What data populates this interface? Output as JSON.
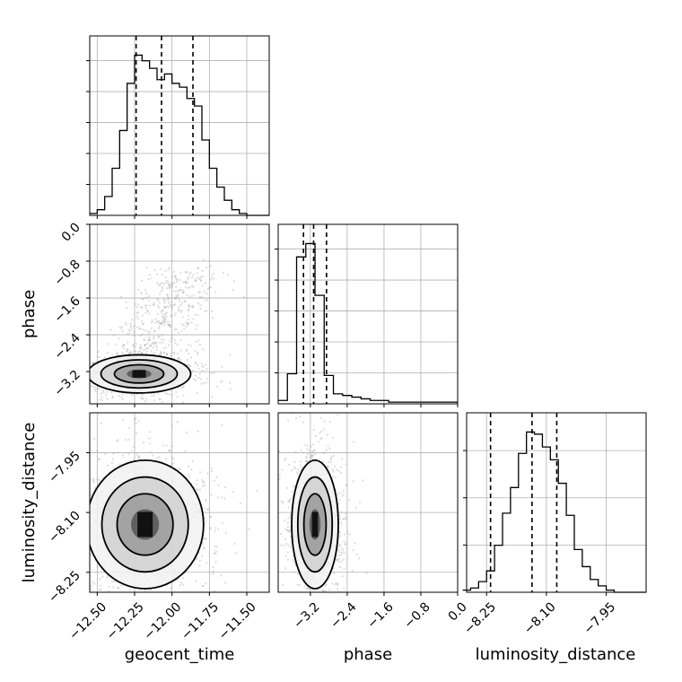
{
  "chart_data": {
    "type": "corner",
    "parameters": [
      {
        "name": "geocent_time",
        "range": [
          -12.55,
          -11.35
        ],
        "ticks": [
          "-12.50",
          "-12.25",
          "-12.00",
          "-11.75",
          "-11.50"
        ],
        "quantiles": [
          -12.24,
          -12.07,
          -11.86
        ]
      },
      {
        "name": "phase",
        "range": [
          -3.9,
          0.0
        ],
        "ticks": [
          "-3.2",
          "-2.4",
          "-1.6",
          "-0.8",
          "0.0"
        ],
        "quantiles": [
          -3.35,
          -3.13,
          -2.85
        ]
      },
      {
        "name": "luminosity_distance",
        "range": [
          -8.3,
          -7.85
        ],
        "ticks": [
          "-8.25",
          "-8.10",
          "-7.95"
        ],
        "quantiles": [
          -8.24,
          -8.136,
          -8.074
        ]
      }
    ],
    "histograms": {
      "geocent_time": {
        "edges": [
          -12.55,
          -12.5,
          -12.45,
          -12.4,
          -12.35,
          -12.3,
          -12.25,
          -12.2,
          -12.15,
          -12.1,
          -12.05,
          -12.0,
          -11.95,
          -11.9,
          -11.85,
          -11.8,
          -11.75,
          -11.7,
          -11.65,
          -11.6,
          -11.55,
          -11.5,
          -11.45,
          -11.4,
          -11.35
        ],
        "counts": [
          1,
          3,
          10,
          25,
          45,
          70,
          85,
          82,
          78,
          72,
          75,
          70,
          68,
          62,
          58,
          40,
          25,
          15,
          8,
          3,
          1,
          0,
          0,
          0
        ]
      },
      "phase": {
        "edges": [
          -3.9,
          -3.7,
          -3.5,
          -3.3,
          -3.1,
          -2.9,
          -2.7,
          -2.5,
          -2.3,
          -2.1,
          -1.9,
          -1.7,
          -1.5,
          -1.3,
          -1.1,
          -0.9,
          -0.7,
          -0.5,
          -0.3,
          -0.1,
          0.0
        ],
        "counts": [
          2,
          18,
          88,
          96,
          65,
          17,
          6,
          5,
          4,
          3,
          2,
          2,
          1,
          1,
          1,
          1,
          1,
          1,
          1,
          1
        ]
      },
      "luminosity_distance": {
        "edges": [
          -8.31,
          -8.29,
          -8.27,
          -8.25,
          -8.23,
          -8.21,
          -8.19,
          -8.17,
          -8.15,
          -8.13,
          -8.11,
          -8.09,
          -8.07,
          -8.05,
          -8.03,
          -8.01,
          -7.99,
          -7.97,
          -7.95,
          -7.93,
          -7.91,
          -7.89,
          -7.87,
          -7.85
        ],
        "counts": [
          1,
          2,
          5,
          10,
          22,
          37,
          49,
          65,
          75,
          74,
          68,
          62,
          51,
          36,
          20,
          12,
          6,
          3,
          1,
          0,
          0,
          0,
          0
        ]
      }
    },
    "samples": {
      "geocent_time__phase": {
        "center": [
          -12.22,
          -3.25
        ],
        "sigma": [
          0.15,
          0.18
        ],
        "tail_toward": [
          -11.85,
          -1.0
        ]
      },
      "geocent_time__luminosity_distance": {
        "center": [
          -12.18,
          -8.13
        ],
        "sigma": [
          0.17,
          0.07
        ]
      },
      "phase__luminosity_distance": {
        "center": [
          -3.1,
          -8.13
        ],
        "sigma": [
          0.22,
          0.07
        ]
      }
    },
    "colors": {
      "hist": "#000000",
      "scatter": "#9a9a9a",
      "grid": "#b0b0b0"
    }
  }
}
